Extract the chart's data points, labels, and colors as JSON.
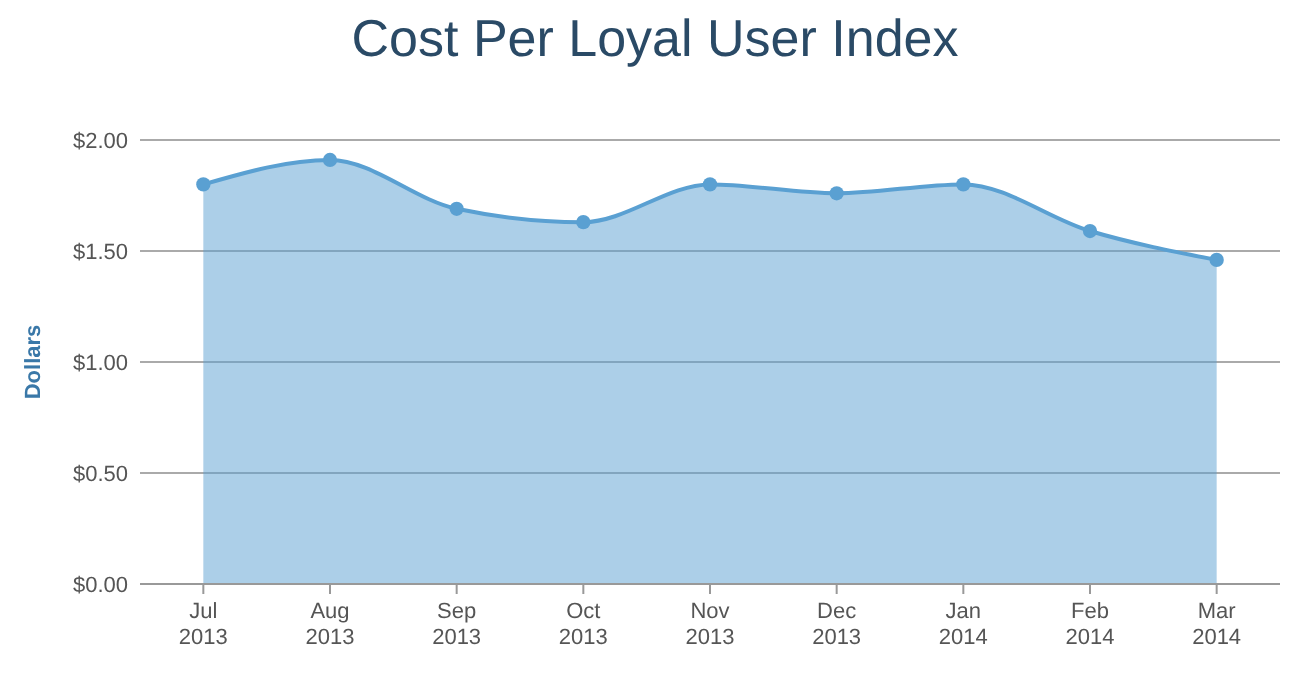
{
  "chart_data": {
    "type": "area",
    "title": "Cost Per Loyal User Index",
    "ylabel": "Dollars",
    "categories": [
      "Jul 2013",
      "Aug 2013",
      "Sep 2013",
      "Oct 2013",
      "Nov 2013",
      "Dec 2013",
      "Jan 2014",
      "Feb 2014",
      "Mar 2014"
    ],
    "series": [
      {
        "color": "#5aa0d2",
        "values": [
          1.8,
          1.91,
          1.69,
          1.63,
          1.8,
          1.76,
          1.8,
          1.59,
          1.46
        ]
      }
    ],
    "ylim": [
      0,
      2
    ],
    "yticks": [
      {
        "value": 0,
        "label": "$0.00"
      },
      {
        "value": 0.5,
        "label": "$0.50"
      },
      {
        "value": 1,
        "label": "$1.00"
      },
      {
        "value": 1.5,
        "label": "$1.50"
      },
      {
        "value": 2,
        "label": "$2.00"
      }
    ],
    "grid": "y",
    "marker": "circle"
  }
}
